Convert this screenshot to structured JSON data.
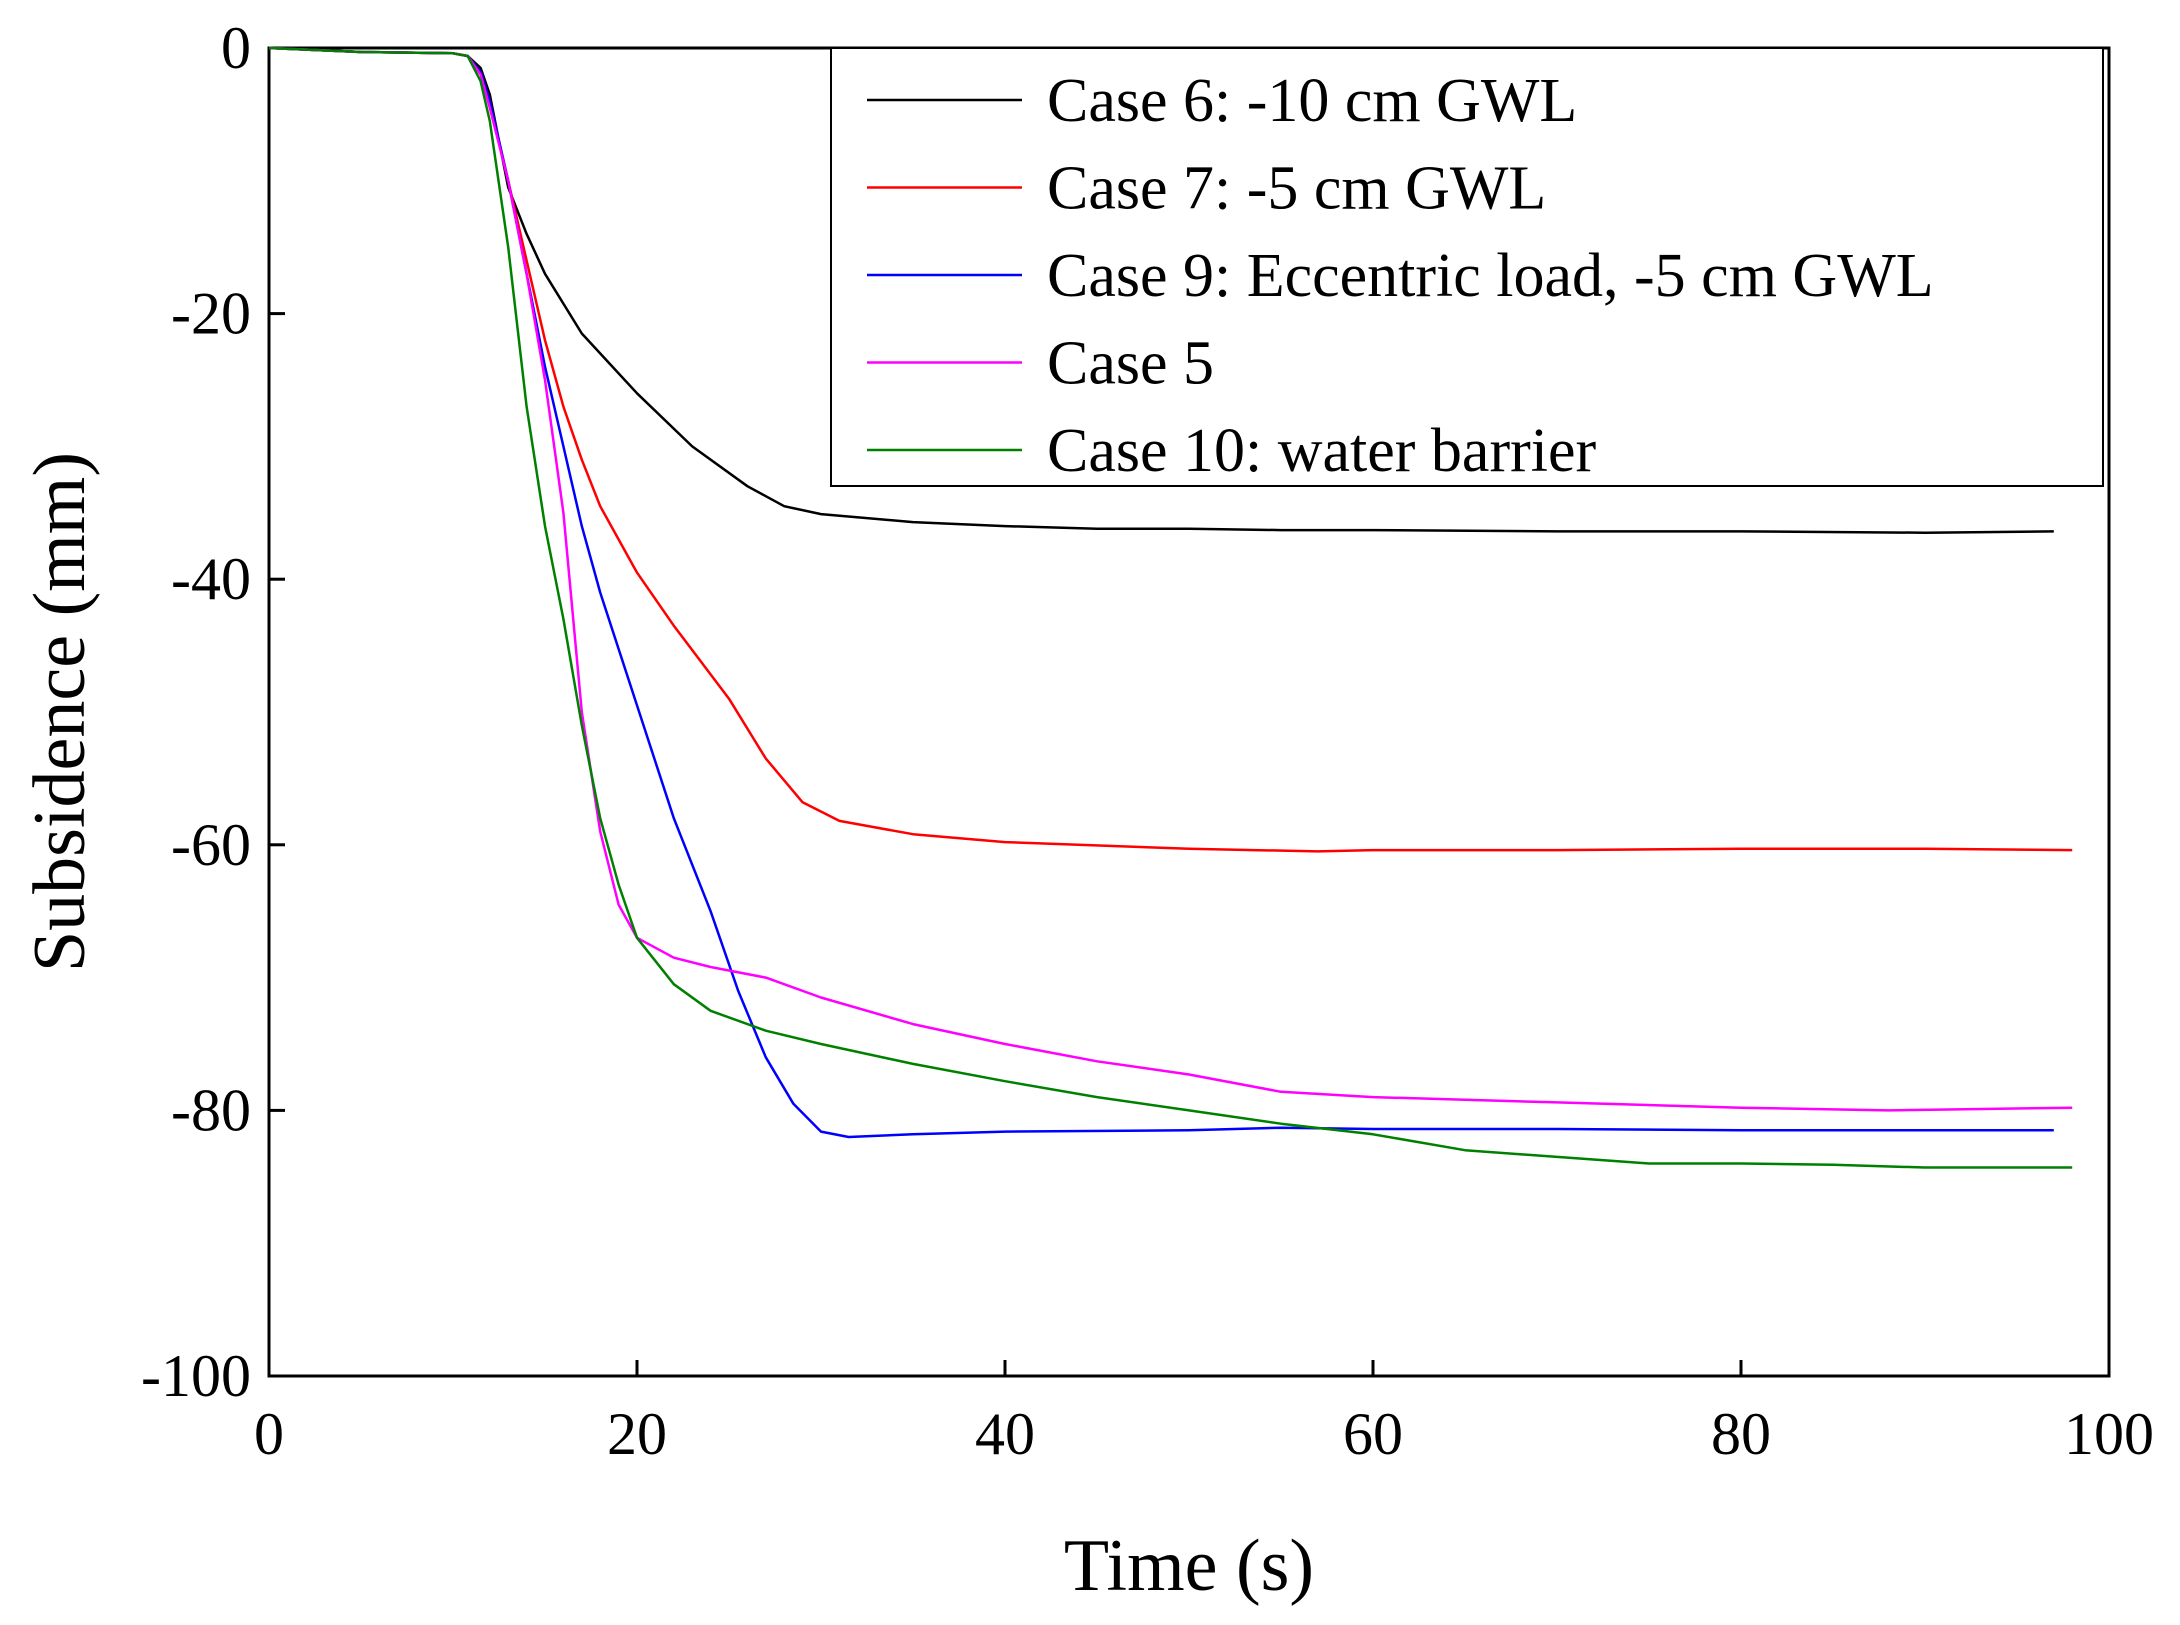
{
  "chart_data": {
    "type": "line",
    "title": "",
    "xlabel": "Time (s)",
    "ylabel": "Subsidence (mm)",
    "xlim": [
      0,
      100
    ],
    "ylim": [
      -100,
      0
    ],
    "x_ticks": [
      0,
      20,
      40,
      60,
      80,
      100
    ],
    "y_ticks": [
      0,
      -20,
      -40,
      -60,
      -80,
      -100
    ],
    "x_tick_labels": [
      "0",
      "20",
      "40",
      "60",
      "80",
      "100"
    ],
    "y_tick_labels": [
      "0",
      "-20",
      "-40",
      "-60",
      "-80",
      "-100"
    ],
    "grid": false,
    "legend_position": "top-right",
    "series": [
      {
        "name": "Case 6: -10 cm GWL",
        "color": "#000000",
        "points": [
          [
            0,
            0
          ],
          [
            5,
            -0.3
          ],
          [
            10,
            -0.4
          ],
          [
            10.8,
            -0.6
          ],
          [
            11.5,
            -1.5
          ],
          [
            12,
            -3.5
          ],
          [
            12.5,
            -7
          ],
          [
            13,
            -10.5
          ],
          [
            14,
            -14
          ],
          [
            15,
            -17
          ],
          [
            17,
            -21.5
          ],
          [
            20,
            -26
          ],
          [
            23,
            -30
          ],
          [
            26,
            -33
          ],
          [
            28,
            -34.5
          ],
          [
            30,
            -35.1
          ],
          [
            35,
            -35.7
          ],
          [
            40,
            -36
          ],
          [
            45,
            -36.2
          ],
          [
            50,
            -36.2
          ],
          [
            55,
            -36.3
          ],
          [
            60,
            -36.3
          ],
          [
            70,
            -36.4
          ],
          [
            80,
            -36.4
          ],
          [
            90,
            -36.5
          ],
          [
            97,
            -36.4
          ]
        ]
      },
      {
        "name": "Case 7: -5 cm GWL",
        "color": "#ff0000",
        "points": [
          [
            0,
            0
          ],
          [
            5,
            -0.3
          ],
          [
            10,
            -0.4
          ],
          [
            10.8,
            -0.6
          ],
          [
            11.5,
            -1.8
          ],
          [
            12,
            -4
          ],
          [
            13,
            -10
          ],
          [
            14,
            -16
          ],
          [
            15,
            -22
          ],
          [
            16,
            -27
          ],
          [
            17,
            -31
          ],
          [
            18,
            -34.5
          ],
          [
            20,
            -39.5
          ],
          [
            22,
            -43.5
          ],
          [
            25,
            -49
          ],
          [
            27,
            -53.5
          ],
          [
            29,
            -56.8
          ],
          [
            31,
            -58.2
          ],
          [
            35,
            -59.2
          ],
          [
            40,
            -59.8
          ],
          [
            50,
            -60.3
          ],
          [
            57,
            -60.5
          ],
          [
            60,
            -60.4
          ],
          [
            70,
            -60.4
          ],
          [
            80,
            -60.3
          ],
          [
            90,
            -60.3
          ],
          [
            98,
            -60.4
          ]
        ]
      },
      {
        "name": "Case 9: Eccentric load, -5 cm GWL",
        "color": "#0000ff",
        "points": [
          [
            0,
            0
          ],
          [
            5,
            -0.3
          ],
          [
            10,
            -0.4
          ],
          [
            10.8,
            -0.6
          ],
          [
            11.5,
            -1.8
          ],
          [
            12,
            -4
          ],
          [
            13,
            -10
          ],
          [
            14,
            -17
          ],
          [
            15,
            -24
          ],
          [
            16,
            -30
          ],
          [
            17,
            -36
          ],
          [
            18,
            -41
          ],
          [
            20,
            -49.5
          ],
          [
            22,
            -58
          ],
          [
            24,
            -65
          ],
          [
            25.5,
            -71
          ],
          [
            27,
            -76
          ],
          [
            28.5,
            -79.5
          ],
          [
            30,
            -81.6
          ],
          [
            31.5,
            -82
          ],
          [
            35,
            -81.8
          ],
          [
            40,
            -81.6
          ],
          [
            50,
            -81.5
          ],
          [
            55,
            -81.3
          ],
          [
            60,
            -81.4
          ],
          [
            70,
            -81.4
          ],
          [
            80,
            -81.5
          ],
          [
            90,
            -81.5
          ],
          [
            97,
            -81.5
          ]
        ]
      },
      {
        "name": "Case 5",
        "color": "#ff00ff",
        "points": [
          [
            0,
            0
          ],
          [
            5,
            -0.3
          ],
          [
            10,
            -0.4
          ],
          [
            10.8,
            -0.6
          ],
          [
            11.5,
            -2
          ],
          [
            12,
            -4.5
          ],
          [
            13,
            -10
          ],
          [
            14,
            -17
          ],
          [
            15,
            -25
          ],
          [
            16,
            -35
          ],
          [
            17,
            -50
          ],
          [
            18,
            -59
          ],
          [
            19,
            -64.5
          ],
          [
            20,
            -67
          ],
          [
            22,
            -68.5
          ],
          [
            24,
            -69.2
          ],
          [
            27,
            -70
          ],
          [
            30,
            -71.5
          ],
          [
            35,
            -73.5
          ],
          [
            40,
            -75
          ],
          [
            45,
            -76.3
          ],
          [
            50,
            -77.3
          ],
          [
            55,
            -78.6
          ],
          [
            60,
            -79
          ],
          [
            70,
            -79.4
          ],
          [
            80,
            -79.8
          ],
          [
            88,
            -80
          ],
          [
            98,
            -79.8
          ]
        ]
      },
      {
        "name": "Case 10: water barrier",
        "color": "#008000",
        "points": [
          [
            0,
            0
          ],
          [
            5,
            -0.3
          ],
          [
            10,
            -0.4
          ],
          [
            10.8,
            -0.6
          ],
          [
            11.5,
            -2.5
          ],
          [
            12,
            -5.5
          ],
          [
            13,
            -15
          ],
          [
            14,
            -27
          ],
          [
            15,
            -36
          ],
          [
            16,
            -43
          ],
          [
            17,
            -51
          ],
          [
            18,
            -58
          ],
          [
            19,
            -63
          ],
          [
            20,
            -67
          ],
          [
            22,
            -70.5
          ],
          [
            24,
            -72.5
          ],
          [
            27,
            -74
          ],
          [
            30,
            -75
          ],
          [
            35,
            -76.5
          ],
          [
            40,
            -77.8
          ],
          [
            45,
            -79
          ],
          [
            50,
            -80
          ],
          [
            55,
            -81
          ],
          [
            60,
            -81.8
          ],
          [
            65,
            -83
          ],
          [
            70,
            -83.5
          ],
          [
            75,
            -84
          ],
          [
            80,
            -84
          ],
          [
            85,
            -84.1
          ],
          [
            90,
            -84.3
          ],
          [
            98,
            -84.3
          ]
        ]
      }
    ]
  }
}
